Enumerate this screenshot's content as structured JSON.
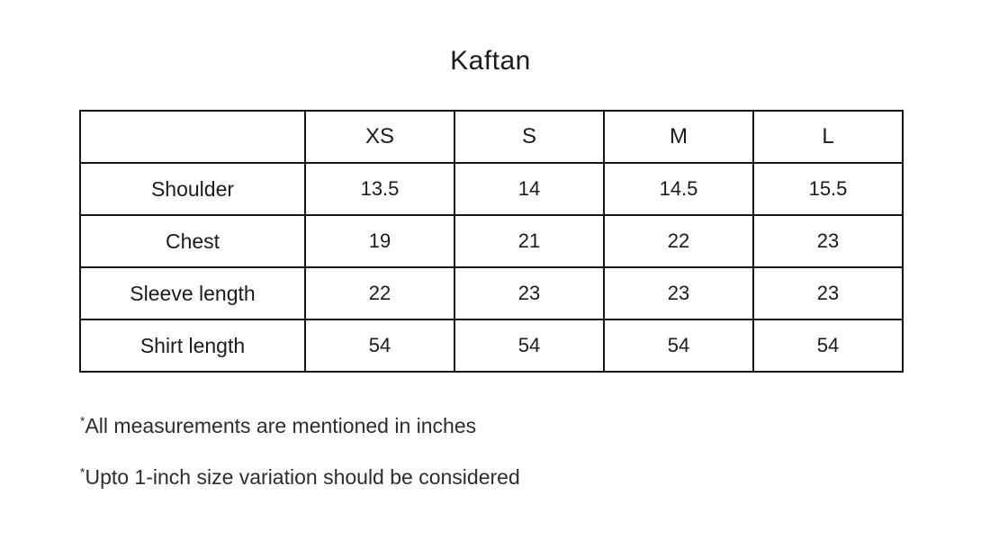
{
  "page": {
    "title": "Kaftan"
  },
  "size_chart": {
    "columns": [
      "",
      "XS",
      "S",
      "M",
      "L"
    ],
    "rows": [
      {
        "label": "Shoulder",
        "values": [
          "13.5",
          "14",
          "14.5",
          "15.5"
        ]
      },
      {
        "label": "Chest",
        "values": [
          "19",
          "21",
          "22",
          "23"
        ]
      },
      {
        "label": "Sleeve length",
        "values": [
          "22",
          "23",
          "23",
          "23"
        ]
      },
      {
        "label": "Shirt length",
        "values": [
          "54",
          "54",
          "54",
          "54"
        ]
      }
    ]
  },
  "note_marker": "*",
  "notes": [
    "All measurements are mentioned in inches",
    "Upto 1-inch size variation should be considered"
  ],
  "colors": {
    "background": "#ffffff",
    "text": "#1b1b1b",
    "border": "#141414"
  }
}
